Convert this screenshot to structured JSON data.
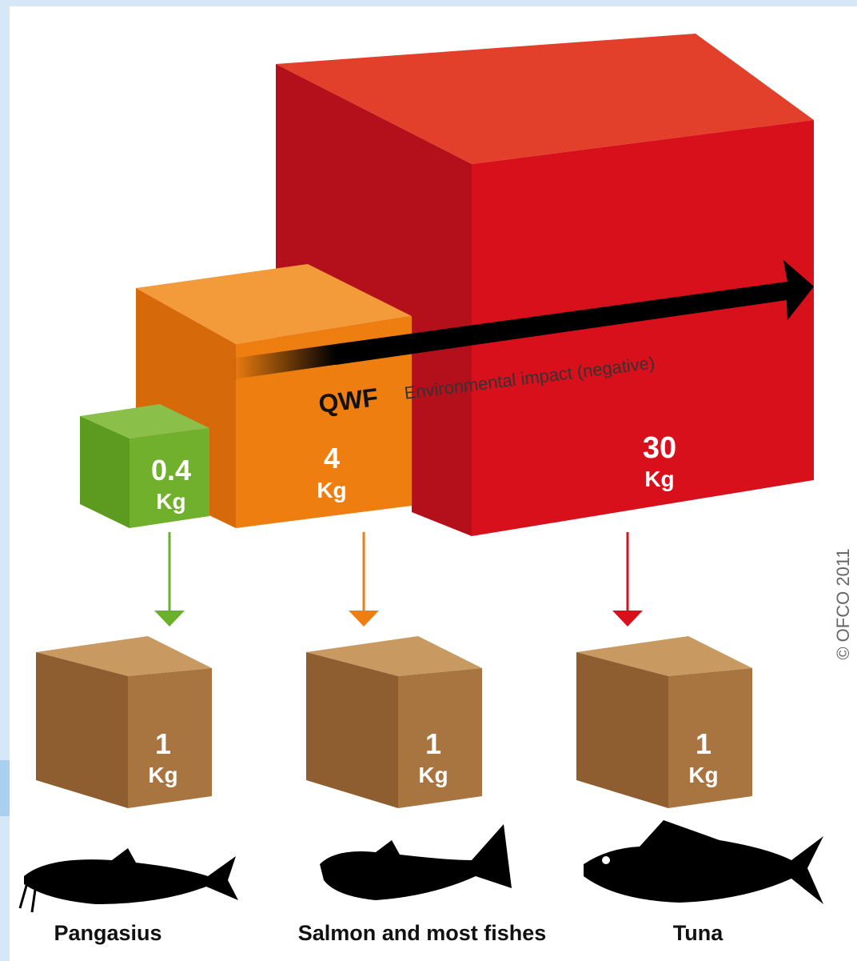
{
  "input_cubes": [
    {
      "value": "0.4",
      "unit": "Kg"
    },
    {
      "value": "4",
      "unit": "Kg"
    },
    {
      "value": "30",
      "unit": "Kg"
    }
  ],
  "arrow": {
    "label": "QWF",
    "text": "Environmental impact (negative)"
  },
  "output_cubes": [
    {
      "value": "1",
      "unit": "Kg"
    },
    {
      "value": "1",
      "unit": "Kg"
    },
    {
      "value": "1",
      "unit": "Kg"
    }
  ],
  "fish": [
    {
      "name": "Pangasius"
    },
    {
      "name": "Salmon and most fishes"
    },
    {
      "name": "Tuna"
    }
  ],
  "copyright": "© OFCO 2011"
}
